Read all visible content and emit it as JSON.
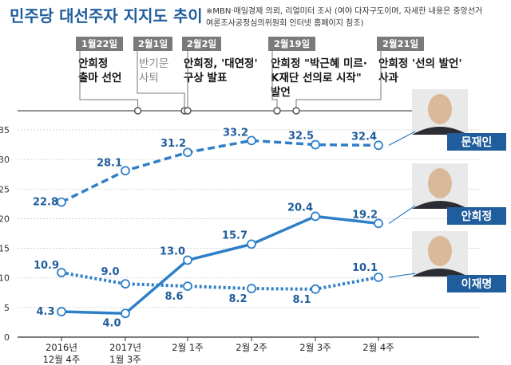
{
  "chart_data": {
    "type": "line",
    "title": "민주당 대선주자 지지도 추이",
    "source_note": [
      "※MBN·매일경제 의뢰, 리얼미터 조사 (여야 다자구도이며, 자세한 내용은 중앙선거",
      "여론조사공정심의위원회 인터넷 홈페이지 참조)"
    ],
    "categories": [
      [
        "2016년",
        "12월 4주"
      ],
      [
        "2017년",
        "1월 3주"
      ],
      [
        "2월 1주"
      ],
      [
        "2월 2주"
      ],
      [
        "2월 3주"
      ],
      [
        "2월 4주"
      ]
    ],
    "ylim": [
      0,
      35
    ],
    "yticks": [
      0,
      5,
      10,
      15,
      20,
      25,
      30,
      35
    ],
    "grid": true,
    "series": [
      {
        "name": "문재인",
        "values": [
          22.8,
          28.1,
          31.2,
          33.2,
          32.5,
          32.4
        ],
        "labels": [
          "22.8",
          "28.1",
          "31.2",
          "33.2",
          "32.5",
          "32.4"
        ],
        "style": "dashed",
        "color": "#2f7fc8"
      },
      {
        "name": "안희정",
        "values": [
          4.3,
          4.0,
          13.0,
          15.7,
          20.4,
          19.2
        ],
        "labels": [
          "4.3",
          "4.0",
          "13.0",
          "15.7",
          "20.4",
          "19.2"
        ],
        "style": "solid",
        "color": "#2f7fc8"
      },
      {
        "name": "이재명",
        "values": [
          10.9,
          9.0,
          8.6,
          8.2,
          8.1,
          10.1
        ],
        "labels": [
          "10.9",
          "9.0",
          "8.6",
          "8.2",
          "8.1",
          "10.1"
        ],
        "style": "dotted",
        "color": "#2f7fc8"
      }
    ],
    "events": [
      {
        "date": "1월22일",
        "text": [
          "안희정",
          "출마 선언"
        ],
        "muted": false,
        "pos": 1.2
      },
      {
        "date": "2월1일",
        "text": [
          "반기문",
          "사퇴"
        ],
        "muted": true,
        "pos": 1.95
      },
      {
        "date": "2월2일",
        "text": [
          "안희정, '대연정'",
          "구상 발표"
        ],
        "muted": false,
        "pos": 2.0
      },
      {
        "date": "2월19일",
        "text": [
          "안희정 \"박근혜 미르·",
          "K재단 선의로 시작\"",
          "발언"
        ],
        "muted": false,
        "pos": 3.4
      },
      {
        "date": "2월21일",
        "text": [
          "안희정 '선의 발언'",
          "사과"
        ],
        "muted": false,
        "pos": 3.7
      }
    ],
    "colors": {
      "line": "#2f7fc8",
      "title": "#1f5d9c",
      "date_tag": "#7a7a7a",
      "name_box": "#1f5d9c",
      "axis": "#333333"
    }
  }
}
